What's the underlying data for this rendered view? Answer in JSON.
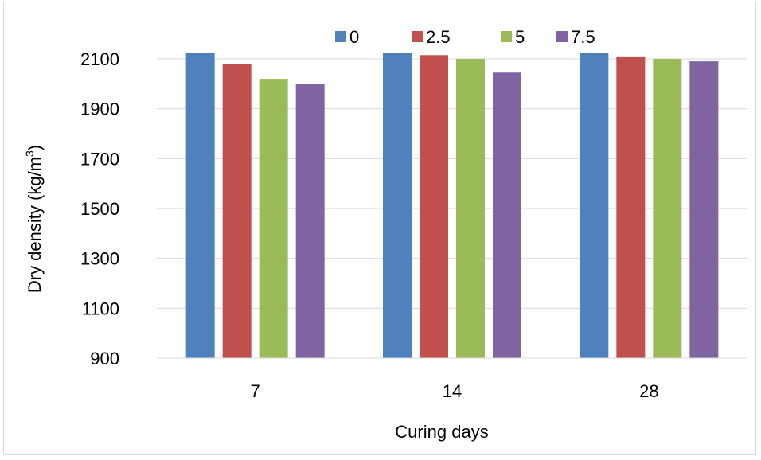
{
  "chart_data": {
    "type": "bar",
    "title": "",
    "categories": [
      "7",
      "14",
      "28"
    ],
    "series": [
      {
        "name": "0",
        "color": "#4f81bd",
        "values": [
          2125,
          2145,
          2130
        ]
      },
      {
        "name": "2.5",
        "color": "#c0504d",
        "values": [
          2080,
          2115,
          2110
        ]
      },
      {
        "name": "5",
        "color": "#9bbb59",
        "values": [
          2020,
          2100,
          2100
        ]
      },
      {
        "name": "7.5",
        "color": "#8064a2",
        "values": [
          2000,
          2045,
          2090
        ]
      }
    ],
    "xlabel": "Curing days",
    "ylabel": {
      "text": "Dry density (kg/m",
      "superscript": "3",
      "suffix": ")"
    },
    "ylim": [
      900,
      2100
    ],
    "yticks": [
      900,
      1100,
      1300,
      1500,
      1700,
      1900,
      2100
    ],
    "grid": true,
    "legend_position": "top"
  }
}
